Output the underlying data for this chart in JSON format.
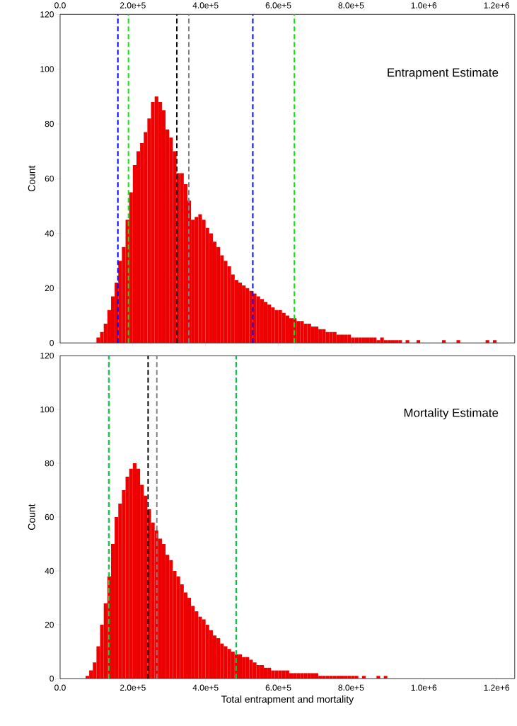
{
  "chart_data": [
    {
      "type": "histogram",
      "title": "Entrapment Estimate",
      "ylabel": "Count",
      "color": "#ee0000",
      "bins": [
        100000,
        110000,
        120000,
        130000,
        140000,
        150000,
        160000,
        170000,
        180000,
        190000,
        200000,
        210000,
        220000,
        230000,
        240000,
        250000,
        260000,
        270000,
        280000,
        290000,
        300000,
        310000,
        320000,
        330000,
        340000,
        350000,
        360000,
        370000,
        380000,
        390000,
        400000,
        410000,
        420000,
        430000,
        440000,
        450000,
        460000,
        470000,
        480000,
        490000,
        500000,
        510000,
        520000,
        530000,
        540000,
        550000,
        560000,
        570000,
        580000,
        590000,
        600000,
        610000,
        620000,
        630000,
        640000,
        650000,
        660000,
        670000,
        680000,
        690000,
        700000,
        710000,
        720000,
        730000,
        740000,
        750000,
        760000,
        770000,
        780000,
        790000,
        800000,
        810000,
        820000,
        830000,
        840000,
        850000,
        860000,
        870000,
        880000,
        890000,
        900000,
        910000,
        920000,
        930000,
        940000,
        950000,
        960000,
        970000,
        980000,
        990000,
        1000000,
        1010000,
        1020000,
        1030000,
        1040000,
        1050000,
        1060000,
        1070000,
        1080000,
        1090000,
        1100000,
        1110000,
        1120000,
        1130000,
        1140000,
        1150000,
        1160000,
        1170000,
        1180000,
        1190000,
        1200000
      ],
      "values": [
        2,
        4,
        7,
        12,
        17,
        22,
        30,
        35,
        45,
        55,
        65,
        70,
        73,
        77,
        82,
        88,
        90,
        88,
        85,
        78,
        75,
        70,
        62,
        62,
        58,
        52,
        45,
        46,
        47,
        45,
        42,
        40,
        37,
        35,
        32,
        30,
        28,
        25,
        23,
        22,
        21,
        20,
        19,
        18,
        17,
        16,
        15,
        14,
        13,
        12,
        12,
        11,
        10,
        9,
        9,
        8,
        8,
        7,
        7,
        6,
        6,
        5,
        5,
        4,
        4,
        4,
        3,
        3,
        3,
        3,
        2,
        2,
        2,
        2,
        2,
        2,
        2,
        1,
        2,
        1,
        1,
        1,
        1,
        1,
        0,
        1,
        0,
        0,
        1,
        0,
        0,
        0,
        0,
        0,
        0,
        1,
        0,
        0,
        0,
        1,
        0,
        0,
        0,
        0,
        0,
        0,
        0,
        1,
        0,
        1
      ],
      "xlim": [
        0,
        1250000
      ],
      "xticks": [
        {
          "value": 0,
          "label": "0.0"
        },
        {
          "value": 200000,
          "label": "2.0e+5"
        },
        {
          "value": 400000,
          "label": "4.0e+5"
        },
        {
          "value": 600000,
          "label": "6.0e+5"
        },
        {
          "value": 800000,
          "label": "8.0e+5"
        },
        {
          "value": 1000000,
          "label": "1.0e+6"
        },
        {
          "value": 1200000,
          "label": "1.2e+6"
        }
      ],
      "ylim": [
        0,
        120
      ],
      "yticks": [
        0,
        20,
        40,
        60,
        80,
        100,
        120
      ],
      "grid": false,
      "ref_lines": [
        {
          "axis": "x",
          "value": 159000,
          "color": "#0000ff",
          "line_style": "dashed"
        },
        {
          "axis": "x",
          "value": 188000,
          "color": "#00ee00",
          "line_style": "dashed"
        },
        {
          "axis": "x",
          "value": 321000,
          "color": "#000000",
          "line_style": "dashed"
        },
        {
          "axis": "x",
          "value": 354000,
          "color": "#808080",
          "line_style": "dashed"
        },
        {
          "axis": "x",
          "value": 530000,
          "color": "#0000ff",
          "line_style": "dashed"
        },
        {
          "axis": "x",
          "value": 644000,
          "color": "#00ee00",
          "line_style": "dashed"
        }
      ]
    },
    {
      "type": "histogram",
      "title": "Mortality Estimate",
      "xlabel": "Total entrapment and mortality",
      "ylabel": "Count",
      "color": "#ee0000",
      "bins": [
        70000,
        80000,
        90000,
        100000,
        110000,
        120000,
        130000,
        140000,
        150000,
        160000,
        170000,
        180000,
        190000,
        200000,
        210000,
        220000,
        230000,
        240000,
        250000,
        260000,
        270000,
        280000,
        290000,
        300000,
        310000,
        320000,
        330000,
        340000,
        350000,
        360000,
        370000,
        380000,
        390000,
        400000,
        410000,
        420000,
        430000,
        440000,
        450000,
        460000,
        470000,
        480000,
        490000,
        500000,
        510000,
        520000,
        530000,
        540000,
        550000,
        560000,
        570000,
        580000,
        590000,
        600000,
        610000,
        620000,
        630000,
        640000,
        650000,
        660000,
        670000,
        680000,
        690000,
        700000,
        710000,
        720000,
        730000,
        740000,
        750000,
        760000,
        770000,
        780000,
        790000,
        800000,
        810000,
        820000,
        830000,
        840000,
        850000,
        860000,
        870000,
        880000,
        890000,
        900000
      ],
      "values": [
        1,
        3,
        6,
        12,
        20,
        28,
        38,
        50,
        60,
        65,
        70,
        75,
        78,
        80,
        78,
        72,
        68,
        63,
        58,
        55,
        52,
        50,
        46,
        44,
        40,
        38,
        35,
        32,
        30,
        27,
        25,
        23,
        22,
        20,
        18,
        16,
        15,
        13,
        12,
        11,
        10,
        9,
        9,
        8,
        8,
        7,
        6,
        5,
        5,
        4,
        4,
        3,
        3,
        3,
        3,
        3,
        2,
        2,
        2,
        2,
        2,
        2,
        2,
        2,
        1,
        1,
        1,
        1,
        1,
        1,
        1,
        1,
        1,
        1,
        1,
        0,
        1,
        0,
        0,
        0,
        1,
        0,
        1
      ],
      "xlim": [
        0,
        1250000
      ],
      "xticks": [
        {
          "value": 0,
          "label": "0.0"
        },
        {
          "value": 200000,
          "label": "2.0e+5"
        },
        {
          "value": 400000,
          "label": "4.0e+5"
        },
        {
          "value": 600000,
          "label": "6.0e+5"
        },
        {
          "value": 800000,
          "label": "8.0e+5"
        },
        {
          "value": 1000000,
          "label": "1.0e+6"
        },
        {
          "value": 1200000,
          "label": "1.2e+6"
        }
      ],
      "ylim": [
        0,
        120
      ],
      "yticks": [
        0,
        20,
        40,
        60,
        80,
        100,
        120
      ],
      "grid": false,
      "ref_lines": [
        {
          "axis": "x",
          "value": 134000,
          "color": "#0000ff",
          "line_style": "dashed"
        },
        {
          "axis": "x",
          "value": 134000,
          "color": "#00ee00",
          "line_style": "dashed"
        },
        {
          "axis": "x",
          "value": 242000,
          "color": "#000000",
          "line_style": "dashed"
        },
        {
          "axis": "x",
          "value": 266000,
          "color": "#808080",
          "line_style": "dashed"
        },
        {
          "axis": "x",
          "value": 484000,
          "color": "#0000ff",
          "line_style": "dashed"
        },
        {
          "axis": "x",
          "value": 484000,
          "color": "#00ee00",
          "line_style": "dashed"
        }
      ]
    }
  ]
}
